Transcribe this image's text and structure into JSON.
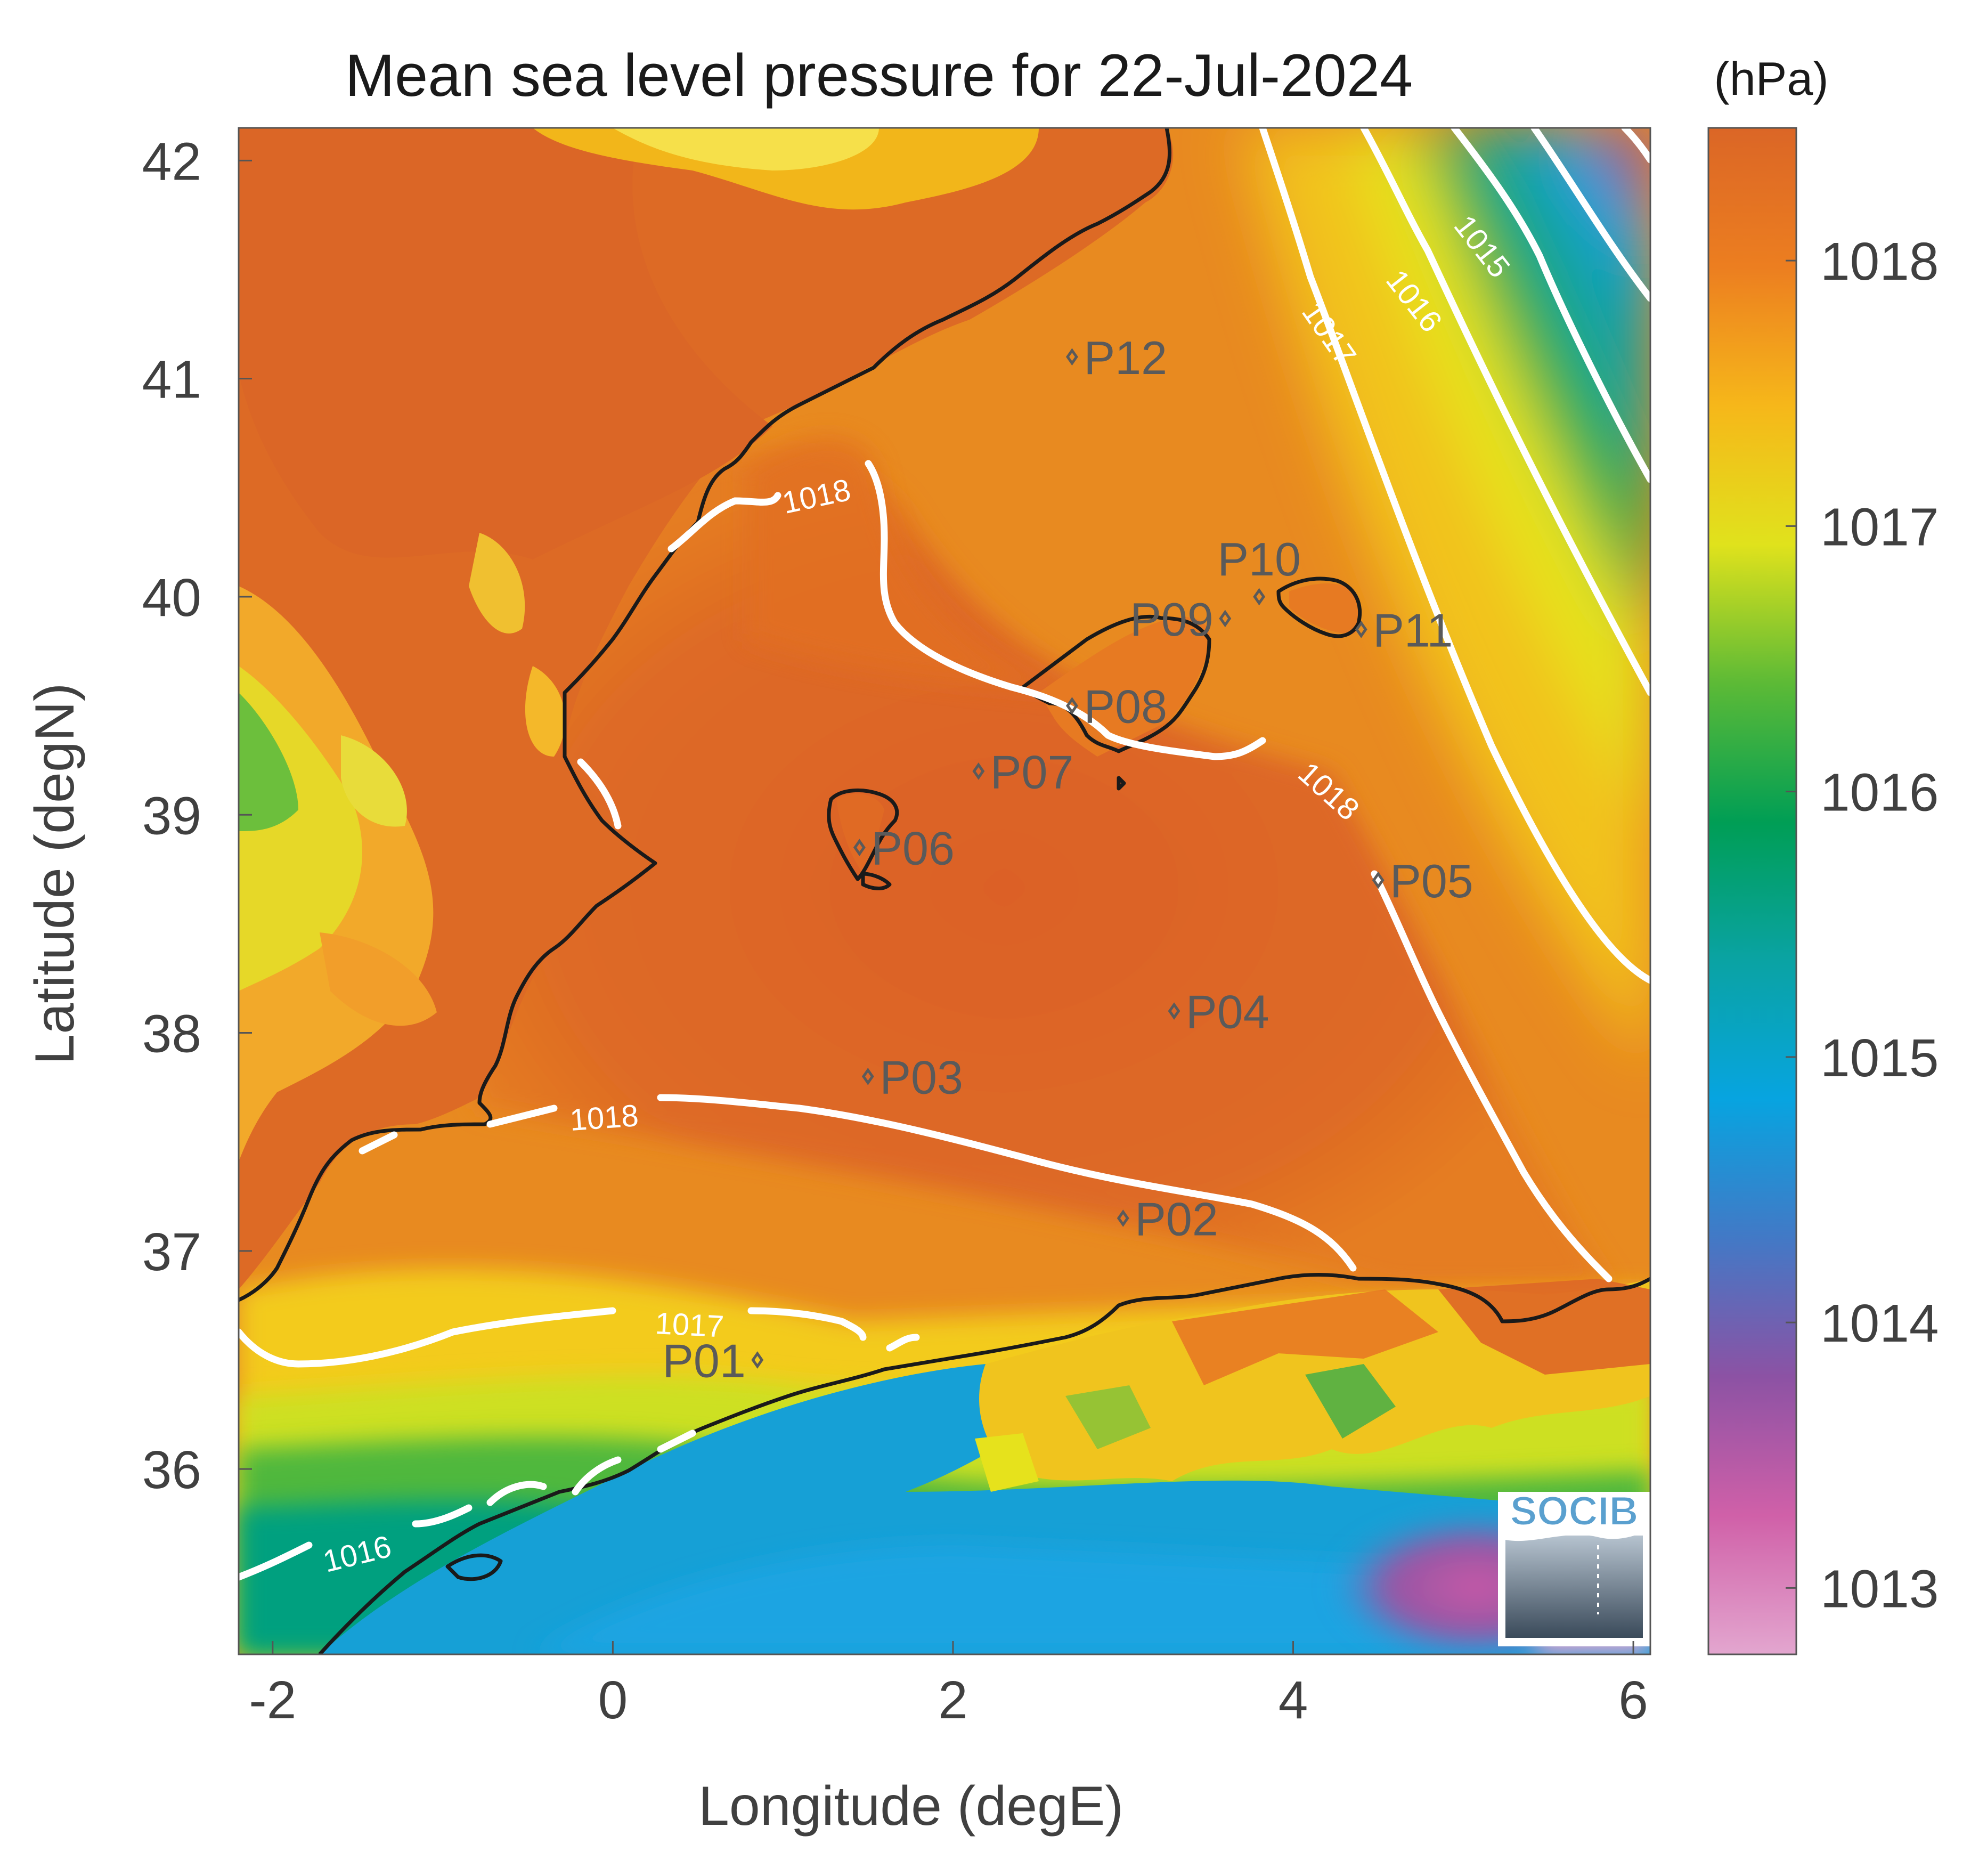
{
  "title": "Mean sea level pressure for 22-Jul-2024",
  "colorbar": {
    "unit": "(hPa)",
    "ticks": [
      "1013",
      "1014",
      "1015",
      "1016",
      "1017",
      "1018"
    ],
    "range": [
      1012.75,
      1018.5
    ],
    "colors": [
      "#e3a6cf",
      "#d060a8",
      "#8c52a4",
      "#4279c6",
      "#07a4e0",
      "#0aa3a3",
      "#009e55",
      "#5cba36",
      "#e0e21c",
      "#f6b71a",
      "#ec7e20",
      "#db6626"
    ]
  },
  "axes": {
    "xlabel": "Longitude (degE)",
    "ylabel": "Latitude (degN)",
    "xticks": [
      "-2",
      "0",
      "2",
      "4",
      "6"
    ],
    "yticks": [
      "42",
      "41",
      "40",
      "39",
      "38",
      "37",
      "36"
    ],
    "xlim": [
      -2.2,
      6.1
    ],
    "ylim": [
      35.15,
      42.15
    ]
  },
  "contour_labels": [
    {
      "text": "1015",
      "lon": 5.1,
      "lat": 41.6,
      "rotate": 52
    },
    {
      "text": "1016",
      "lon": 4.7,
      "lat": 41.35,
      "rotate": 52
    },
    {
      "text": "1017",
      "lon": 4.2,
      "lat": 41.2,
      "rotate": 55
    },
    {
      "text": "1018",
      "lon": 1.2,
      "lat": 40.45,
      "rotate": -12
    },
    {
      "text": "1018",
      "lon": 4.2,
      "lat": 39.1,
      "rotate": 42
    },
    {
      "text": "1018",
      "lon": -0.05,
      "lat": 37.6,
      "rotate": -4
    },
    {
      "text": "1017",
      "lon": 0.45,
      "lat": 36.65,
      "rotate": 3
    },
    {
      "text": "1016",
      "lon": -1.5,
      "lat": 35.6,
      "rotate": -14
    }
  ],
  "stations": [
    {
      "name": "P01",
      "lon": 0.85,
      "lat": 36.5,
      "side": "left"
    },
    {
      "name": "P02",
      "lon": 3.0,
      "lat": 37.15,
      "side": "right"
    },
    {
      "name": "P03",
      "lon": 1.5,
      "lat": 37.8,
      "side": "right"
    },
    {
      "name": "P04",
      "lon": 3.3,
      "lat": 38.1,
      "side": "right"
    },
    {
      "name": "P05",
      "lon": 4.5,
      "lat": 38.7,
      "side": "right"
    },
    {
      "name": "P06",
      "lon": 1.45,
      "lat": 38.85,
      "side": "right"
    },
    {
      "name": "P07",
      "lon": 2.15,
      "lat": 39.2,
      "side": "right"
    },
    {
      "name": "P08",
      "lon": 2.7,
      "lat": 39.5,
      "side": "right"
    },
    {
      "name": "P09",
      "lon": 3.6,
      "lat": 39.9,
      "side": "left"
    },
    {
      "name": "P10",
      "lon": 3.8,
      "lat": 40.0,
      "side": "above"
    },
    {
      "name": "P11",
      "lon": 4.4,
      "lat": 39.85,
      "side": "right"
    },
    {
      "name": "P12",
      "lon": 2.7,
      "lat": 41.1,
      "side": "right"
    }
  ],
  "logo": {
    "text": "SOCIB"
  }
}
